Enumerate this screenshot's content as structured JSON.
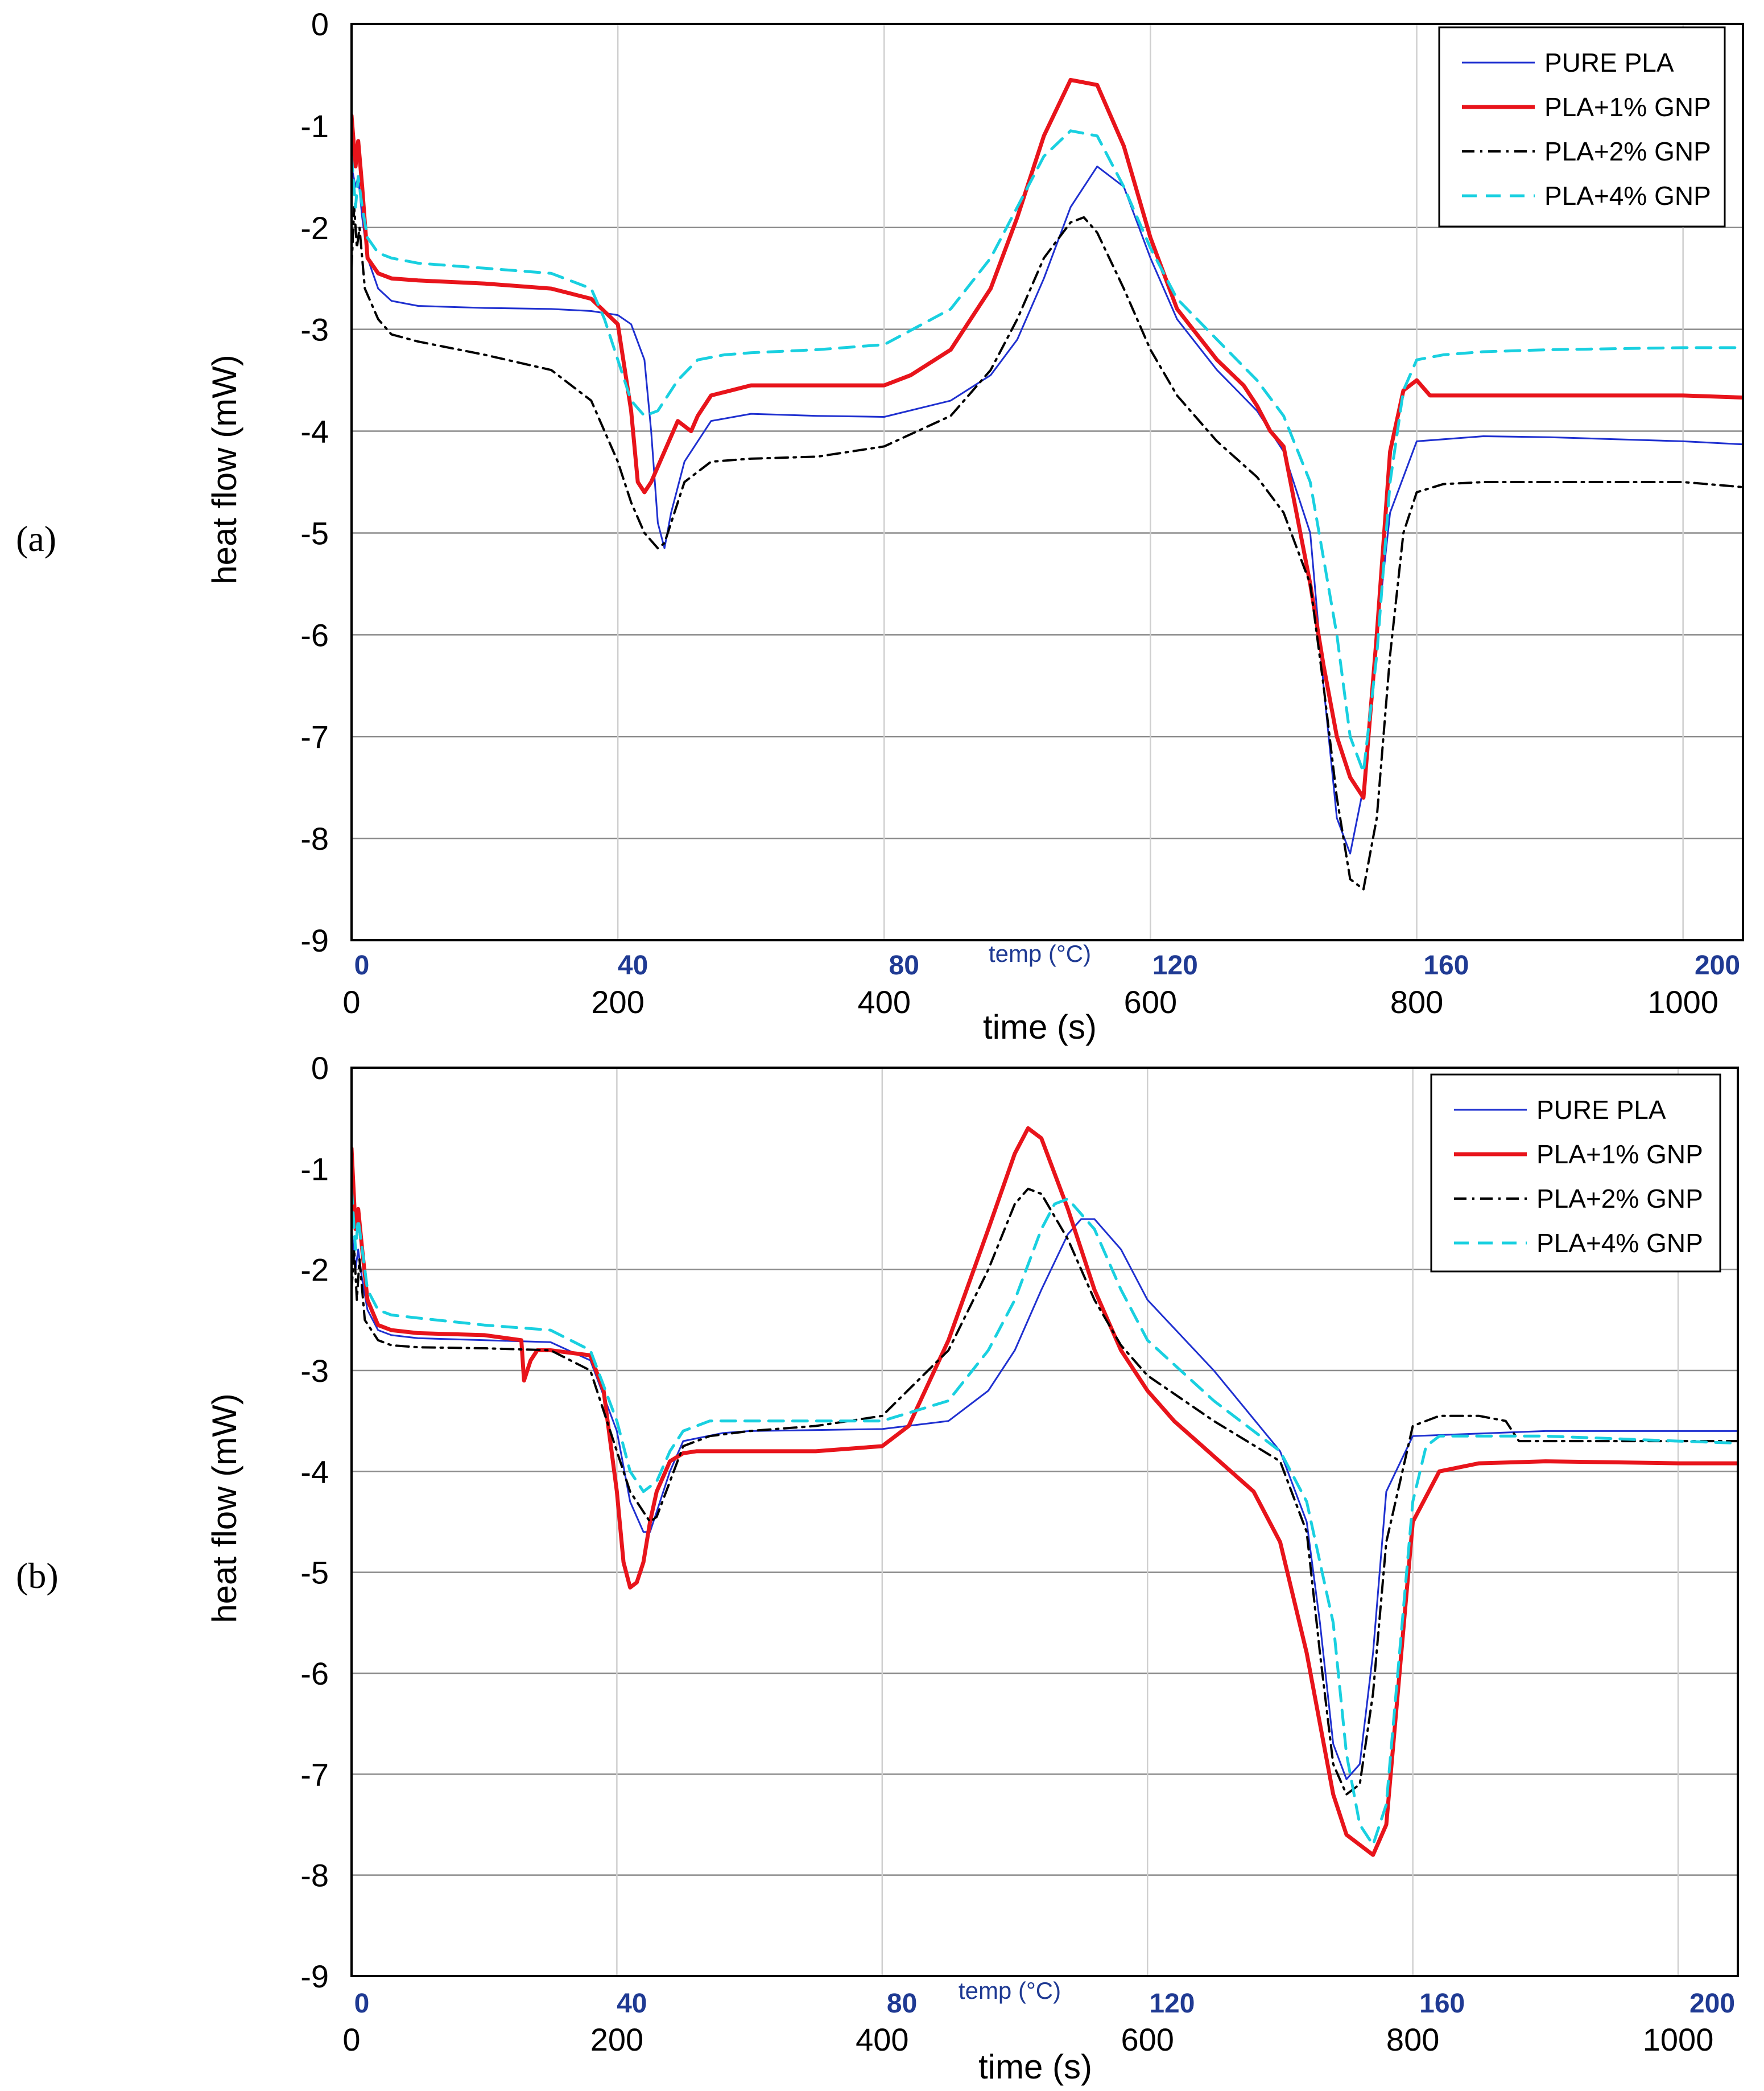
{
  "chart_data": [
    {
      "type": "line",
      "panel_label": "(a)",
      "xlabel": "time (s)",
      "ylabel": "heat flow (mW)",
      "secondary_axis_label": "temp (°C)",
      "xlim": [
        0,
        1045
      ],
      "ylim": [
        -9,
        0
      ],
      "x_ticks": [
        "0",
        "200",
        "400",
        "600",
        "800",
        "1000"
      ],
      "y_ticks": [
        "0",
        "-1",
        "-2",
        "-3",
        "-4",
        "-5",
        "-6",
        "-7",
        "-8",
        "-9"
      ],
      "temp_ticks": [
        "0",
        "40",
        "80",
        "120",
        "160",
        "200"
      ],
      "series": [
        {
          "name": "PURE PLA",
          "color": "#1f30d0",
          "dash": "solid",
          "width": 3,
          "x": [
            0,
            3,
            5,
            8,
            12,
            20,
            30,
            50,
            100,
            150,
            180,
            200,
            210,
            220,
            225,
            230,
            235,
            240,
            250,
            270,
            300,
            350,
            400,
            450,
            480,
            500,
            520,
            540,
            560,
            580,
            600,
            620,
            650,
            680,
            700,
            720,
            730,
            740,
            750,
            760,
            770,
            780,
            800,
            850,
            900,
            1000,
            1045
          ],
          "y": [
            -1.4,
            -1.6,
            -1.5,
            -1.9,
            -2.3,
            -2.6,
            -2.72,
            -2.77,
            -2.79,
            -2.8,
            -2.82,
            -2.86,
            -2.95,
            -3.3,
            -4.0,
            -4.9,
            -5.15,
            -4.8,
            -4.3,
            -3.9,
            -3.83,
            -3.85,
            -3.86,
            -3.7,
            -3.45,
            -3.1,
            -2.5,
            -1.8,
            -1.4,
            -1.6,
            -2.3,
            -2.9,
            -3.4,
            -3.8,
            -4.2,
            -5.0,
            -6.5,
            -7.8,
            -8.15,
            -7.5,
            -6.0,
            -4.8,
            -4.1,
            -4.05,
            -4.06,
            -4.1,
            -4.13
          ]
        },
        {
          "name": "PLA+1% GNP",
          "color": "#e8141b",
          "dash": "solid",
          "width": 7,
          "x": [
            0,
            3,
            5,
            8,
            12,
            20,
            30,
            50,
            100,
            150,
            180,
            200,
            210,
            215,
            220,
            225,
            235,
            245,
            250,
            255,
            260,
            270,
            300,
            350,
            400,
            420,
            450,
            480,
            500,
            520,
            540,
            560,
            580,
            600,
            620,
            650,
            670,
            680,
            690,
            700,
            720,
            730,
            740,
            750,
            760,
            770,
            780,
            790,
            800,
            810,
            820,
            900,
            1000,
            1045
          ],
          "y": [
            -0.9,
            -1.4,
            -1.15,
            -1.6,
            -2.3,
            -2.45,
            -2.5,
            -2.52,
            -2.55,
            -2.6,
            -2.7,
            -2.95,
            -3.8,
            -4.5,
            -4.6,
            -4.5,
            -4.2,
            -3.9,
            -3.95,
            -4.0,
            -3.85,
            -3.65,
            -3.55,
            -3.55,
            -3.55,
            -3.45,
            -3.2,
            -2.6,
            -1.9,
            -1.1,
            -0.55,
            -0.6,
            -1.2,
            -2.1,
            -2.8,
            -3.3,
            -3.55,
            -3.75,
            -4.0,
            -4.15,
            -5.5,
            -6.3,
            -7.0,
            -7.4,
            -7.6,
            -6.0,
            -4.2,
            -3.6,
            -3.5,
            -3.65,
            -3.65,
            -3.65,
            -3.65,
            -3.67
          ]
        },
        {
          "name": "PLA+2% GNP",
          "color": "#000000",
          "dash": "dashdot",
          "width": 4,
          "x": [
            0,
            2,
            4,
            6,
            10,
            20,
            30,
            50,
            100,
            150,
            180,
            200,
            210,
            220,
            230,
            235,
            240,
            250,
            270,
            300,
            350,
            400,
            450,
            480,
            500,
            520,
            540,
            550,
            560,
            580,
            600,
            620,
            650,
            680,
            700,
            720,
            730,
            740,
            750,
            760,
            770,
            780,
            790,
            800,
            820,
            850,
            900,
            1000,
            1045
          ],
          "y": [
            -2.4,
            -1.8,
            -2.2,
            -2.0,
            -2.6,
            -2.9,
            -3.05,
            -3.12,
            -3.25,
            -3.4,
            -3.7,
            -4.3,
            -4.7,
            -5.0,
            -5.15,
            -5.1,
            -4.9,
            -4.5,
            -4.3,
            -4.27,
            -4.25,
            -4.15,
            -3.85,
            -3.4,
            -2.9,
            -2.3,
            -1.95,
            -1.9,
            -2.05,
            -2.6,
            -3.2,
            -3.65,
            -4.1,
            -4.45,
            -4.8,
            -5.5,
            -6.5,
            -7.6,
            -8.4,
            -8.5,
            -7.8,
            -6.2,
            -5.0,
            -4.6,
            -4.52,
            -4.5,
            -4.5,
            -4.5,
            -4.55
          ]
        },
        {
          "name": "PLA+4% GNP",
          "color": "#19d0e0",
          "dash": "dash",
          "width": 5,
          "x": [
            0,
            3,
            5,
            8,
            12,
            20,
            30,
            50,
            100,
            150,
            180,
            190,
            200,
            210,
            220,
            230,
            245,
            260,
            280,
            300,
            350,
            400,
            450,
            480,
            500,
            520,
            540,
            560,
            580,
            600,
            620,
            650,
            680,
            700,
            720,
            740,
            750,
            760,
            770,
            780,
            790,
            800,
            820,
            850,
            900,
            1000,
            1045
          ],
          "y": [
            -1.3,
            -1.8,
            -1.5,
            -1.8,
            -2.1,
            -2.25,
            -2.3,
            -2.35,
            -2.4,
            -2.45,
            -2.6,
            -2.9,
            -3.3,
            -3.7,
            -3.85,
            -3.8,
            -3.5,
            -3.3,
            -3.25,
            -3.23,
            -3.2,
            -3.15,
            -2.8,
            -2.3,
            -1.8,
            -1.3,
            -1.05,
            -1.1,
            -1.6,
            -2.2,
            -2.7,
            -3.1,
            -3.5,
            -3.85,
            -4.5,
            -6.0,
            -7.0,
            -7.35,
            -6.2,
            -4.5,
            -3.6,
            -3.3,
            -3.25,
            -3.22,
            -3.2,
            -3.18,
            -3.18
          ]
        }
      ]
    },
    {
      "type": "line",
      "panel_label": "(b)",
      "xlabel": "time (s)",
      "ylabel": "heat flow (mW)",
      "secondary_axis_label": "temp (°C)",
      "xlim": [
        0,
        1045
      ],
      "ylim": [
        -9,
        0
      ],
      "x_ticks": [
        "0",
        "200",
        "400",
        "600",
        "800",
        "1000"
      ],
      "y_ticks": [
        "0",
        "-1",
        "-2",
        "-3",
        "-4",
        "-5",
        "-6",
        "-7",
        "-8",
        "-9"
      ],
      "temp_ticks": [
        "0",
        "40",
        "80",
        "120",
        "160",
        "200"
      ],
      "series": [
        {
          "name": "PURE PLA",
          "color": "#1f30d0",
          "dash": "solid",
          "width": 3,
          "x": [
            0,
            3,
            5,
            8,
            12,
            20,
            30,
            50,
            100,
            150,
            180,
            200,
            210,
            220,
            225,
            230,
            240,
            250,
            280,
            300,
            400,
            450,
            480,
            500,
            520,
            540,
            550,
            560,
            580,
            600,
            650,
            700,
            720,
            730,
            740,
            750,
            760,
            770,
            780,
            800,
            900,
            1045
          ],
          "y": [
            -1.6,
            -2.0,
            -1.8,
            -2.1,
            -2.4,
            -2.6,
            -2.65,
            -2.68,
            -2.7,
            -2.72,
            -2.9,
            -3.6,
            -4.3,
            -4.6,
            -4.6,
            -4.4,
            -4.0,
            -3.7,
            -3.62,
            -3.6,
            -3.58,
            -3.5,
            -3.2,
            -2.8,
            -2.2,
            -1.65,
            -1.5,
            -1.5,
            -1.8,
            -2.3,
            -3.0,
            -3.8,
            -4.5,
            -5.5,
            -6.7,
            -7.05,
            -6.9,
            -5.8,
            -4.2,
            -3.65,
            -3.6,
            -3.6
          ]
        },
        {
          "name": "PLA+1% GNP",
          "color": "#e8141b",
          "dash": "solid",
          "width": 7,
          "x": [
            0,
            3,
            5,
            8,
            12,
            20,
            30,
            50,
            100,
            128,
            130,
            135,
            140,
            150,
            180,
            190,
            200,
            205,
            210,
            215,
            220,
            225,
            230,
            240,
            250,
            260,
            280,
            300,
            350,
            400,
            420,
            450,
            480,
            500,
            510,
            520,
            540,
            560,
            580,
            600,
            620,
            650,
            680,
            700,
            720,
            740,
            750,
            760,
            770,
            780,
            790,
            800,
            820,
            850,
            900,
            1000,
            1045
          ],
          "y": [
            -0.8,
            -1.6,
            -1.4,
            -1.8,
            -2.3,
            -2.55,
            -2.6,
            -2.63,
            -2.65,
            -2.7,
            -3.1,
            -2.9,
            -2.8,
            -2.8,
            -2.85,
            -3.2,
            -4.2,
            -4.9,
            -5.15,
            -5.1,
            -4.9,
            -4.5,
            -4.2,
            -3.9,
            -3.82,
            -3.8,
            -3.8,
            -3.8,
            -3.8,
            -3.75,
            -3.55,
            -2.7,
            -1.6,
            -0.85,
            -0.6,
            -0.7,
            -1.4,
            -2.2,
            -2.8,
            -3.2,
            -3.5,
            -3.85,
            -4.2,
            -4.7,
            -5.8,
            -7.2,
            -7.6,
            -7.7,
            -7.8,
            -7.5,
            -6.0,
            -4.5,
            -4.0,
            -3.92,
            -3.9,
            -3.92,
            -3.92
          ]
        },
        {
          "name": "PLA+2% GNP",
          "color": "#000000",
          "dash": "dashdot",
          "width": 4,
          "x": [
            0,
            2,
            4,
            6,
            10,
            20,
            30,
            50,
            100,
            150,
            180,
            200,
            210,
            220,
            225,
            230,
            240,
            250,
            270,
            300,
            350,
            400,
            450,
            480,
            500,
            510,
            520,
            540,
            560,
            580,
            600,
            650,
            700,
            720,
            730,
            740,
            750,
            760,
            770,
            780,
            800,
            820,
            850,
            870,
            880,
            900,
            1000,
            1045
          ],
          "y": [
            -2.2,
            -1.8,
            -2.3,
            -1.9,
            -2.5,
            -2.7,
            -2.75,
            -2.77,
            -2.78,
            -2.8,
            -3.0,
            -3.8,
            -4.2,
            -4.4,
            -4.5,
            -4.45,
            -4.1,
            -3.75,
            -3.65,
            -3.6,
            -3.55,
            -3.45,
            -2.8,
            -2.0,
            -1.35,
            -1.2,
            -1.25,
            -1.7,
            -2.3,
            -2.75,
            -3.05,
            -3.5,
            -3.9,
            -4.6,
            -5.8,
            -6.9,
            -7.2,
            -7.1,
            -6.2,
            -4.7,
            -3.55,
            -3.45,
            -3.45,
            -3.5,
            -3.7,
            -3.7,
            -3.7,
            -3.7
          ]
        },
        {
          "name": "PLA+4% GNP",
          "color": "#19d0e0",
          "dash": "dash",
          "width": 5,
          "x": [
            0,
            3,
            5,
            8,
            12,
            20,
            30,
            50,
            100,
            150,
            180,
            200,
            210,
            220,
            230,
            240,
            250,
            270,
            300,
            400,
            450,
            480,
            500,
            520,
            530,
            540,
            560,
            580,
            600,
            650,
            700,
            720,
            740,
            750,
            760,
            770,
            780,
            790,
            800,
            810,
            820,
            850,
            900,
            1000,
            1045
          ],
          "y": [
            -1.2,
            -1.8,
            -1.5,
            -1.8,
            -2.2,
            -2.4,
            -2.45,
            -2.48,
            -2.55,
            -2.6,
            -2.8,
            -3.5,
            -4.0,
            -4.2,
            -4.1,
            -3.8,
            -3.6,
            -3.5,
            -3.5,
            -3.5,
            -3.3,
            -2.8,
            -2.3,
            -1.6,
            -1.35,
            -1.3,
            -1.6,
            -2.2,
            -2.7,
            -3.3,
            -3.8,
            -4.3,
            -5.5,
            -6.8,
            -7.5,
            -7.7,
            -7.3,
            -5.8,
            -4.3,
            -3.75,
            -3.65,
            -3.65,
            -3.65,
            -3.7,
            -3.72
          ]
        }
      ]
    }
  ]
}
